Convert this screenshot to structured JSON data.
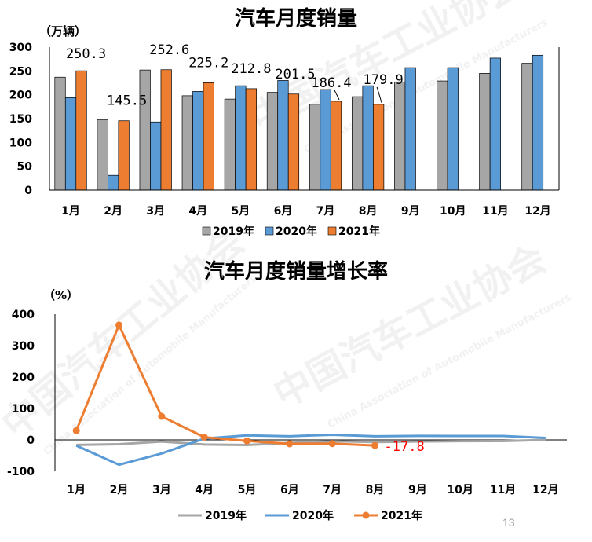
{
  "page_number": "13",
  "watermark": {
    "cn": "中国汽车工业协会",
    "en": "China Association of Automobile Manufacturers"
  },
  "colors": {
    "2019": "#a6a6a6",
    "2020": "#5b9bd5",
    "2021": "#ed7d31",
    "highlight": "#ff0000"
  },
  "chart_data": [
    {
      "type": "bar",
      "title": "汽车月度销量",
      "unit_label": "（万辆）",
      "categories": [
        "1月",
        "2月",
        "3月",
        "4月",
        "5月",
        "6月",
        "7月",
        "8月",
        "9月",
        "10月",
        "11月",
        "12月"
      ],
      "ylim": [
        0,
        300
      ],
      "yticks": [
        0,
        50,
        100,
        150,
        200,
        250,
        300
      ],
      "legend_position": "bottom",
      "series": [
        {
          "name": "2019年",
          "color": "#a6a6a6",
          "values": [
            237,
            148,
            252,
            198,
            191,
            205,
            180,
            196,
            227,
            229,
            245,
            266
          ]
        },
        {
          "name": "2020年",
          "color": "#5b9bd5",
          "values": [
            194,
            31,
            143,
            207,
            219,
            230,
            211,
            219,
            257,
            257,
            277,
            283
          ]
        },
        {
          "name": "2021年",
          "color": "#ed7d31",
          "values": [
            250.3,
            145.5,
            252.6,
            225.2,
            212.8,
            201.5,
            186.4,
            179.9,
            null,
            null,
            null,
            null
          ]
        }
      ],
      "data_labels": [
        "250.3",
        "145.5",
        "252.6",
        "225.2",
        "212.8",
        "201.5",
        "186.4",
        "179.9"
      ]
    },
    {
      "type": "line",
      "title": "汽车月度销量增长率",
      "unit_label": "（%）",
      "categories": [
        "1月",
        "2月",
        "3月",
        "4月",
        "5月",
        "6月",
        "7月",
        "8月",
        "9月",
        "10月",
        "11月",
        "12月"
      ],
      "ylim": [
        -100,
        400
      ],
      "yticks": [
        -100,
        0,
        100,
        200,
        300,
        400
      ],
      "legend_position": "bottom",
      "series": [
        {
          "name": "2019年",
          "color": "#a6a6a6",
          "markers": false,
          "values": [
            -15.8,
            -13.7,
            -5.2,
            -14.6,
            -16.4,
            -9.6,
            -4.3,
            -6.9,
            -5.2,
            -4.0,
            -3.6,
            0.1
          ]
        },
        {
          "name": "2020年",
          "color": "#5b9bd5",
          "markers": false,
          "values": [
            -18.0,
            -79.1,
            -43.3,
            4.4,
            14.5,
            11.6,
            16.4,
            11.6,
            12.8,
            12.5,
            12.6,
            6.4
          ]
        },
        {
          "name": "2021年",
          "color": "#ed7d31",
          "markers": true,
          "values": [
            29.5,
            365.2,
            74.9,
            8.6,
            -3.1,
            -12.4,
            -11.9,
            -17.8,
            null,
            null,
            null,
            null
          ]
        }
      ],
      "annotation": {
        "index": 7,
        "text": "-17.8",
        "color": "#ff0000"
      }
    }
  ]
}
